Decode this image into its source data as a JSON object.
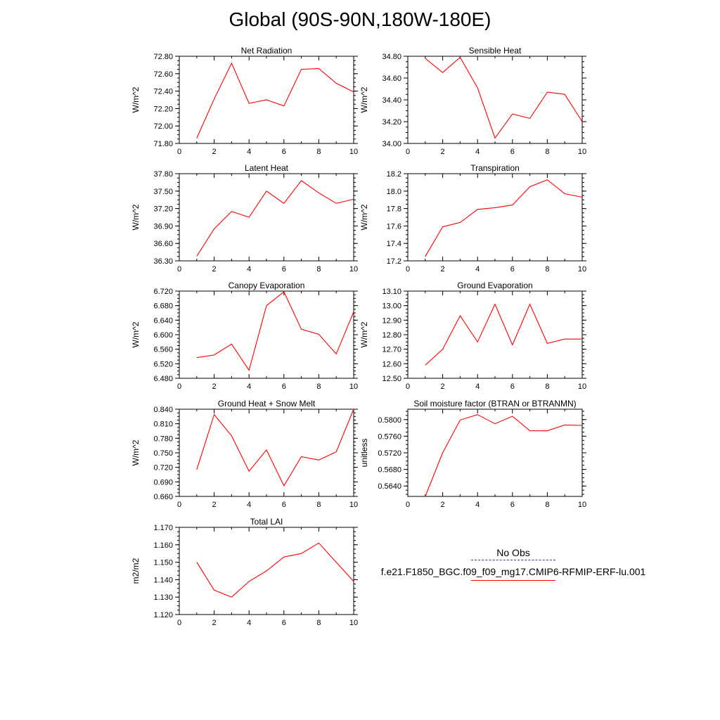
{
  "title": "Global (90S-90N,180W-180E)",
  "legend": {
    "obs_label": "No Obs",
    "case_label": "f.e21.F1850_BGC.f09_f09_mg17.CMIP6-RFMIP-ERF-lu.001",
    "obs_color": "#3a3a9a",
    "case_color": "#ff0000"
  },
  "chart_data": [
    {
      "type": "line",
      "title": "Net Radiation",
      "ylabel": "W/m^2",
      "xlim": [
        0,
        10
      ],
      "xticks": [
        "0",
        "2",
        "4",
        "6",
        "8",
        "10"
      ],
      "ylim": [
        71.8,
        72.8
      ],
      "yticks": [
        "71.80",
        "72.00",
        "72.20",
        "72.40",
        "72.60",
        "72.80"
      ],
      "series": [
        {
          "color": "#ff0000",
          "x": [
            1,
            2,
            3,
            4,
            5,
            6,
            7,
            8,
            9,
            10
          ],
          "y": [
            71.86,
            72.31,
            72.72,
            72.26,
            72.3,
            72.23,
            72.65,
            72.66,
            72.49,
            72.39
          ]
        }
      ]
    },
    {
      "type": "line",
      "title": "Sensible Heat",
      "ylabel": "W/m^2",
      "xlim": [
        0,
        10
      ],
      "xticks": [
        "0",
        "2",
        "4",
        "6",
        "8",
        "10"
      ],
      "ylim": [
        34.0,
        34.8
      ],
      "yticks": [
        "34.00",
        "34.20",
        "34.40",
        "34.60",
        "34.80"
      ],
      "series": [
        {
          "color": "#ff0000",
          "x": [
            1,
            2,
            3,
            4,
            5,
            6,
            7,
            8,
            9,
            10
          ],
          "y": [
            34.78,
            34.65,
            34.79,
            34.51,
            34.05,
            34.27,
            34.23,
            34.47,
            34.45,
            34.2
          ]
        }
      ]
    },
    {
      "type": "line",
      "title": "Latent Heat",
      "ylabel": "W/m^2",
      "xlim": [
        0,
        10
      ],
      "xticks": [
        "0",
        "2",
        "4",
        "6",
        "8",
        "10"
      ],
      "ylim": [
        36.3,
        37.8
      ],
      "yticks": [
        "36.30",
        "36.60",
        "36.90",
        "37.20",
        "37.50",
        "37.80"
      ],
      "series": [
        {
          "color": "#ff0000",
          "x": [
            1,
            2,
            3,
            4,
            5,
            6,
            7,
            8,
            9,
            10
          ],
          "y": [
            36.38,
            36.85,
            37.15,
            37.05,
            37.5,
            37.29,
            37.68,
            37.47,
            37.29,
            37.36
          ]
        }
      ]
    },
    {
      "type": "line",
      "title": "Transpiration",
      "ylabel": "W/m^2",
      "xlim": [
        0,
        10
      ],
      "xticks": [
        "0",
        "2",
        "4",
        "6",
        "8",
        "10"
      ],
      "ylim": [
        17.2,
        18.2
      ],
      "yticks": [
        "17.2",
        "17.4",
        "17.6",
        "17.8",
        "18.0",
        "18.2"
      ],
      "series": [
        {
          "color": "#ff0000",
          "x": [
            1,
            2,
            3,
            4,
            5,
            6,
            7,
            8,
            9,
            10
          ],
          "y": [
            17.25,
            17.59,
            17.64,
            17.79,
            17.81,
            17.84,
            18.05,
            18.13,
            17.97,
            17.93
          ]
        }
      ]
    },
    {
      "type": "line",
      "title": "Canopy Evaporation",
      "ylabel": "W/m^2",
      "xlim": [
        0,
        10
      ],
      "xticks": [
        "0",
        "2",
        "4",
        "6",
        "8",
        "10"
      ],
      "ylim": [
        6.48,
        6.72
      ],
      "yticks": [
        "6.480",
        "6.520",
        "6.560",
        "6.600",
        "6.640",
        "6.680",
        "6.720"
      ],
      "series": [
        {
          "color": "#ff0000",
          "x": [
            1,
            2,
            3,
            4,
            5,
            6,
            7,
            8,
            9,
            10
          ],
          "y": [
            6.537,
            6.544,
            6.574,
            6.502,
            6.68,
            6.718,
            6.615,
            6.601,
            6.547,
            6.663
          ]
        }
      ]
    },
    {
      "type": "line",
      "title": "Ground Evaporation",
      "ylabel": "W/m^2",
      "xlim": [
        0,
        10
      ],
      "xticks": [
        "0",
        "2",
        "4",
        "6",
        "8",
        "10"
      ],
      "ylim": [
        12.5,
        13.1
      ],
      "yticks": [
        "12.50",
        "12.60",
        "12.70",
        "12.80",
        "12.90",
        "13.00",
        "13.10"
      ],
      "series": [
        {
          "color": "#ff0000",
          "x": [
            1,
            2,
            3,
            4,
            5,
            6,
            7,
            8,
            9,
            10
          ],
          "y": [
            12.59,
            12.7,
            12.93,
            12.75,
            13.01,
            12.73,
            13.01,
            12.74,
            12.77,
            12.77
          ]
        }
      ]
    },
    {
      "type": "line",
      "title": "Ground Heat + Snow Melt",
      "ylabel": "W/m^2",
      "xlim": [
        0,
        10
      ],
      "xticks": [
        "0",
        "2",
        "4",
        "6",
        "8",
        "10"
      ],
      "ylim": [
        0.66,
        0.84
      ],
      "yticks": [
        "0.660",
        "0.690",
        "0.720",
        "0.750",
        "0.780",
        "0.810",
        "0.840"
      ],
      "series": [
        {
          "color": "#ff0000",
          "x": [
            1,
            2,
            3,
            4,
            5,
            6,
            7,
            8,
            9,
            10
          ],
          "y": [
            0.715,
            0.829,
            0.785,
            0.712,
            0.756,
            0.682,
            0.742,
            0.735,
            0.752,
            0.84
          ]
        }
      ]
    },
    {
      "type": "line",
      "title": "Soil moisture factor (BTRAN or BTRANMN)",
      "ylabel": "unitless",
      "xlim": [
        0,
        10
      ],
      "xticks": [
        "0",
        "2",
        "4",
        "6",
        "8",
        "10"
      ],
      "ylim": [
        0.5615,
        0.5825
      ],
      "yticks": [
        "0.5640",
        "0.5680",
        "0.5720",
        "0.5760",
        "0.5800"
      ],
      "series": [
        {
          "color": "#ff0000",
          "x": [
            1,
            2,
            3,
            4,
            5,
            6,
            7,
            8,
            9,
            10
          ],
          "y": [
            0.5615,
            0.572,
            0.5799,
            0.5812,
            0.579,
            0.5808,
            0.5773,
            0.5773,
            0.5787,
            0.5786
          ]
        }
      ]
    },
    {
      "type": "line",
      "title": "Total LAI",
      "ylabel": "m2/m2",
      "xlim": [
        0,
        10
      ],
      "xticks": [
        "0",
        "2",
        "4",
        "6",
        "8",
        "10"
      ],
      "ylim": [
        1.12,
        1.17
      ],
      "yticks": [
        "1.120",
        "1.130",
        "1.140",
        "1.150",
        "1.160",
        "1.170"
      ],
      "series": [
        {
          "color": "#ff0000",
          "x": [
            1,
            2,
            3,
            4,
            5,
            6,
            7,
            8,
            9,
            10
          ],
          "y": [
            1.15,
            1.134,
            1.13,
            1.139,
            1.145,
            1.153,
            1.155,
            1.161,
            1.15,
            1.139
          ]
        }
      ]
    }
  ]
}
